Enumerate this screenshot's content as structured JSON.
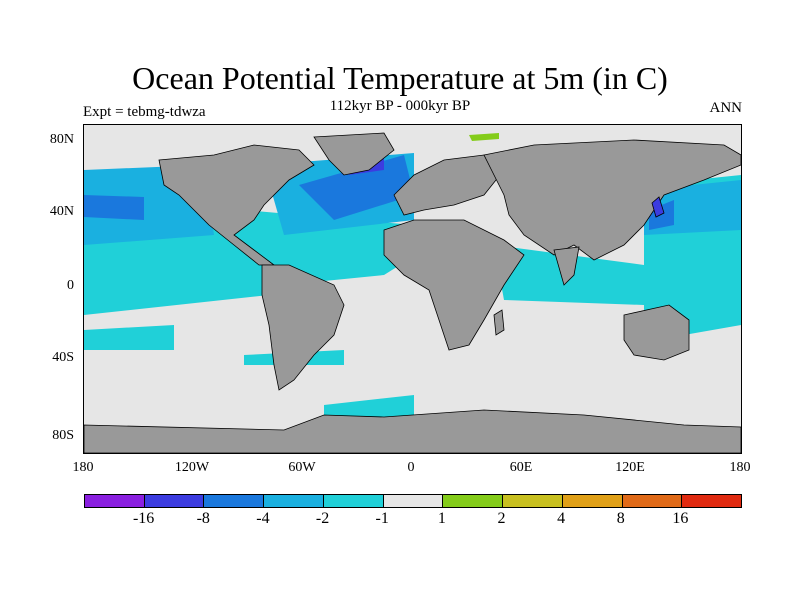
{
  "header": {
    "title": "Ocean Potential Temperature at 5m (in C)",
    "subtitle": "112kyr BP - 000kyr BP",
    "left": "Expt = tebmg-tdwza",
    "right": "ANN"
  },
  "axes": {
    "y_labels": [
      "80N",
      "40N",
      "0",
      "40S",
      "80S"
    ],
    "x_labels": [
      "180",
      "120W",
      "60W",
      "0",
      "60E",
      "120E",
      "180"
    ]
  },
  "colorbar": {
    "colors": [
      "#8a1fe0",
      "#3c3ce0",
      "#1a78dd",
      "#1ab0e0",
      "#20d0d8",
      "#e6e6e6",
      "#84cc1a",
      "#c8c020",
      "#e0a018",
      "#e06a18",
      "#e02a10"
    ],
    "labels": [
      "-16",
      "-8",
      "-4",
      "-2",
      "-1",
      "1",
      "2",
      "4",
      "8",
      "16"
    ]
  },
  "colors": {
    "land": "#999999",
    "no_change": "#e6e6e6",
    "cyan": "#20d0d8",
    "light_blue": "#1ab0e0",
    "blue": "#1a78dd",
    "dark_blue": "#3c3ce0",
    "green": "#84cc1a"
  }
}
